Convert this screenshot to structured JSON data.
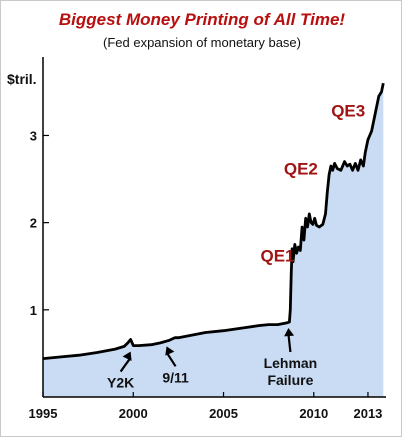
{
  "chart_data": {
    "type": "area",
    "title": "Biggest Money Printing of All Time!",
    "subtitle": "(Fed expansion of monetary base)",
    "ylabel": "$tril.",
    "xlim": [
      1995,
      2014
    ],
    "ylim": [
      0,
      3.9
    ],
    "x_ticks": [
      1995,
      2000,
      2005,
      2010,
      2013
    ],
    "x_tick_labels": [
      "1995",
      "2000",
      "2005",
      "2010",
      "2013"
    ],
    "y_ticks": [
      1,
      2,
      3
    ],
    "y_tick_labels": [
      "1",
      "2",
      "3"
    ],
    "grid": false,
    "fill_color": "#c9dcf3",
    "line_color": "#000000",
    "series": [
      {
        "x": [
          1995.0,
          1996.0,
          1997.0,
          1998.0,
          1999.0,
          1999.5,
          1999.7,
          1999.85,
          2000.0,
          2000.3,
          2001.0,
          2001.5,
          2002.0,
          2002.3,
          2002.5,
          2003.0,
          2004.0,
          2005.0,
          2006.0,
          2007.0,
          2007.5,
          2008.0,
          2008.5,
          2008.65,
          2008.7,
          2008.75,
          2008.8,
          2008.85,
          2008.95,
          2009.05,
          2009.15,
          2009.25,
          2009.35,
          2009.45,
          2009.55,
          2009.65,
          2009.75,
          2009.85,
          2009.95,
          2010.05,
          2010.15,
          2010.3,
          2010.5,
          2010.65,
          2010.75,
          2010.85,
          2010.95,
          2011.05,
          2011.15,
          2011.3,
          2011.5,
          2011.7,
          2011.85,
          2012.0,
          2012.15,
          2012.3,
          2012.45,
          2012.6,
          2012.75,
          2012.85,
          2013.0,
          2013.2,
          2013.4,
          2013.6,
          2013.75,
          2013.85
        ],
        "y": [
          0.44,
          0.46,
          0.48,
          0.51,
          0.55,
          0.58,
          0.62,
          0.66,
          0.59,
          0.59,
          0.6,
          0.62,
          0.65,
          0.68,
          0.68,
          0.7,
          0.74,
          0.76,
          0.79,
          0.82,
          0.83,
          0.83,
          0.85,
          0.86,
          1.0,
          1.4,
          1.7,
          1.55,
          1.75,
          1.65,
          1.72,
          1.68,
          1.95,
          1.8,
          2.05,
          1.95,
          2.1,
          2.0,
          1.98,
          2.05,
          1.97,
          1.95,
          1.98,
          2.1,
          2.35,
          2.55,
          2.65,
          2.6,
          2.68,
          2.62,
          2.6,
          2.7,
          2.65,
          2.67,
          2.6,
          2.68,
          2.6,
          2.72,
          2.65,
          2.8,
          2.95,
          3.05,
          3.25,
          3.45,
          3.5,
          3.6
        ]
      }
    ],
    "annotations": [
      {
        "text": "QE1",
        "x": 2008.6,
        "y": 1.3
      },
      {
        "text": "QE2",
        "x": 2010.45,
        "y": 2.3
      },
      {
        "text": "QE3",
        "x": 2012.85,
        "y": 3.15
      },
      {
        "text": "Y2K",
        "x": 1999.8,
        "y": 0.59
      },
      {
        "text": "9/11",
        "x": 2001.9,
        "y": 0.65
      },
      {
        "text": "Lehman",
        "x": 2008.65,
        "y": 0.86
      },
      {
        "text": "Failure",
        "x": 2008.65,
        "y": 0.86
      }
    ]
  }
}
